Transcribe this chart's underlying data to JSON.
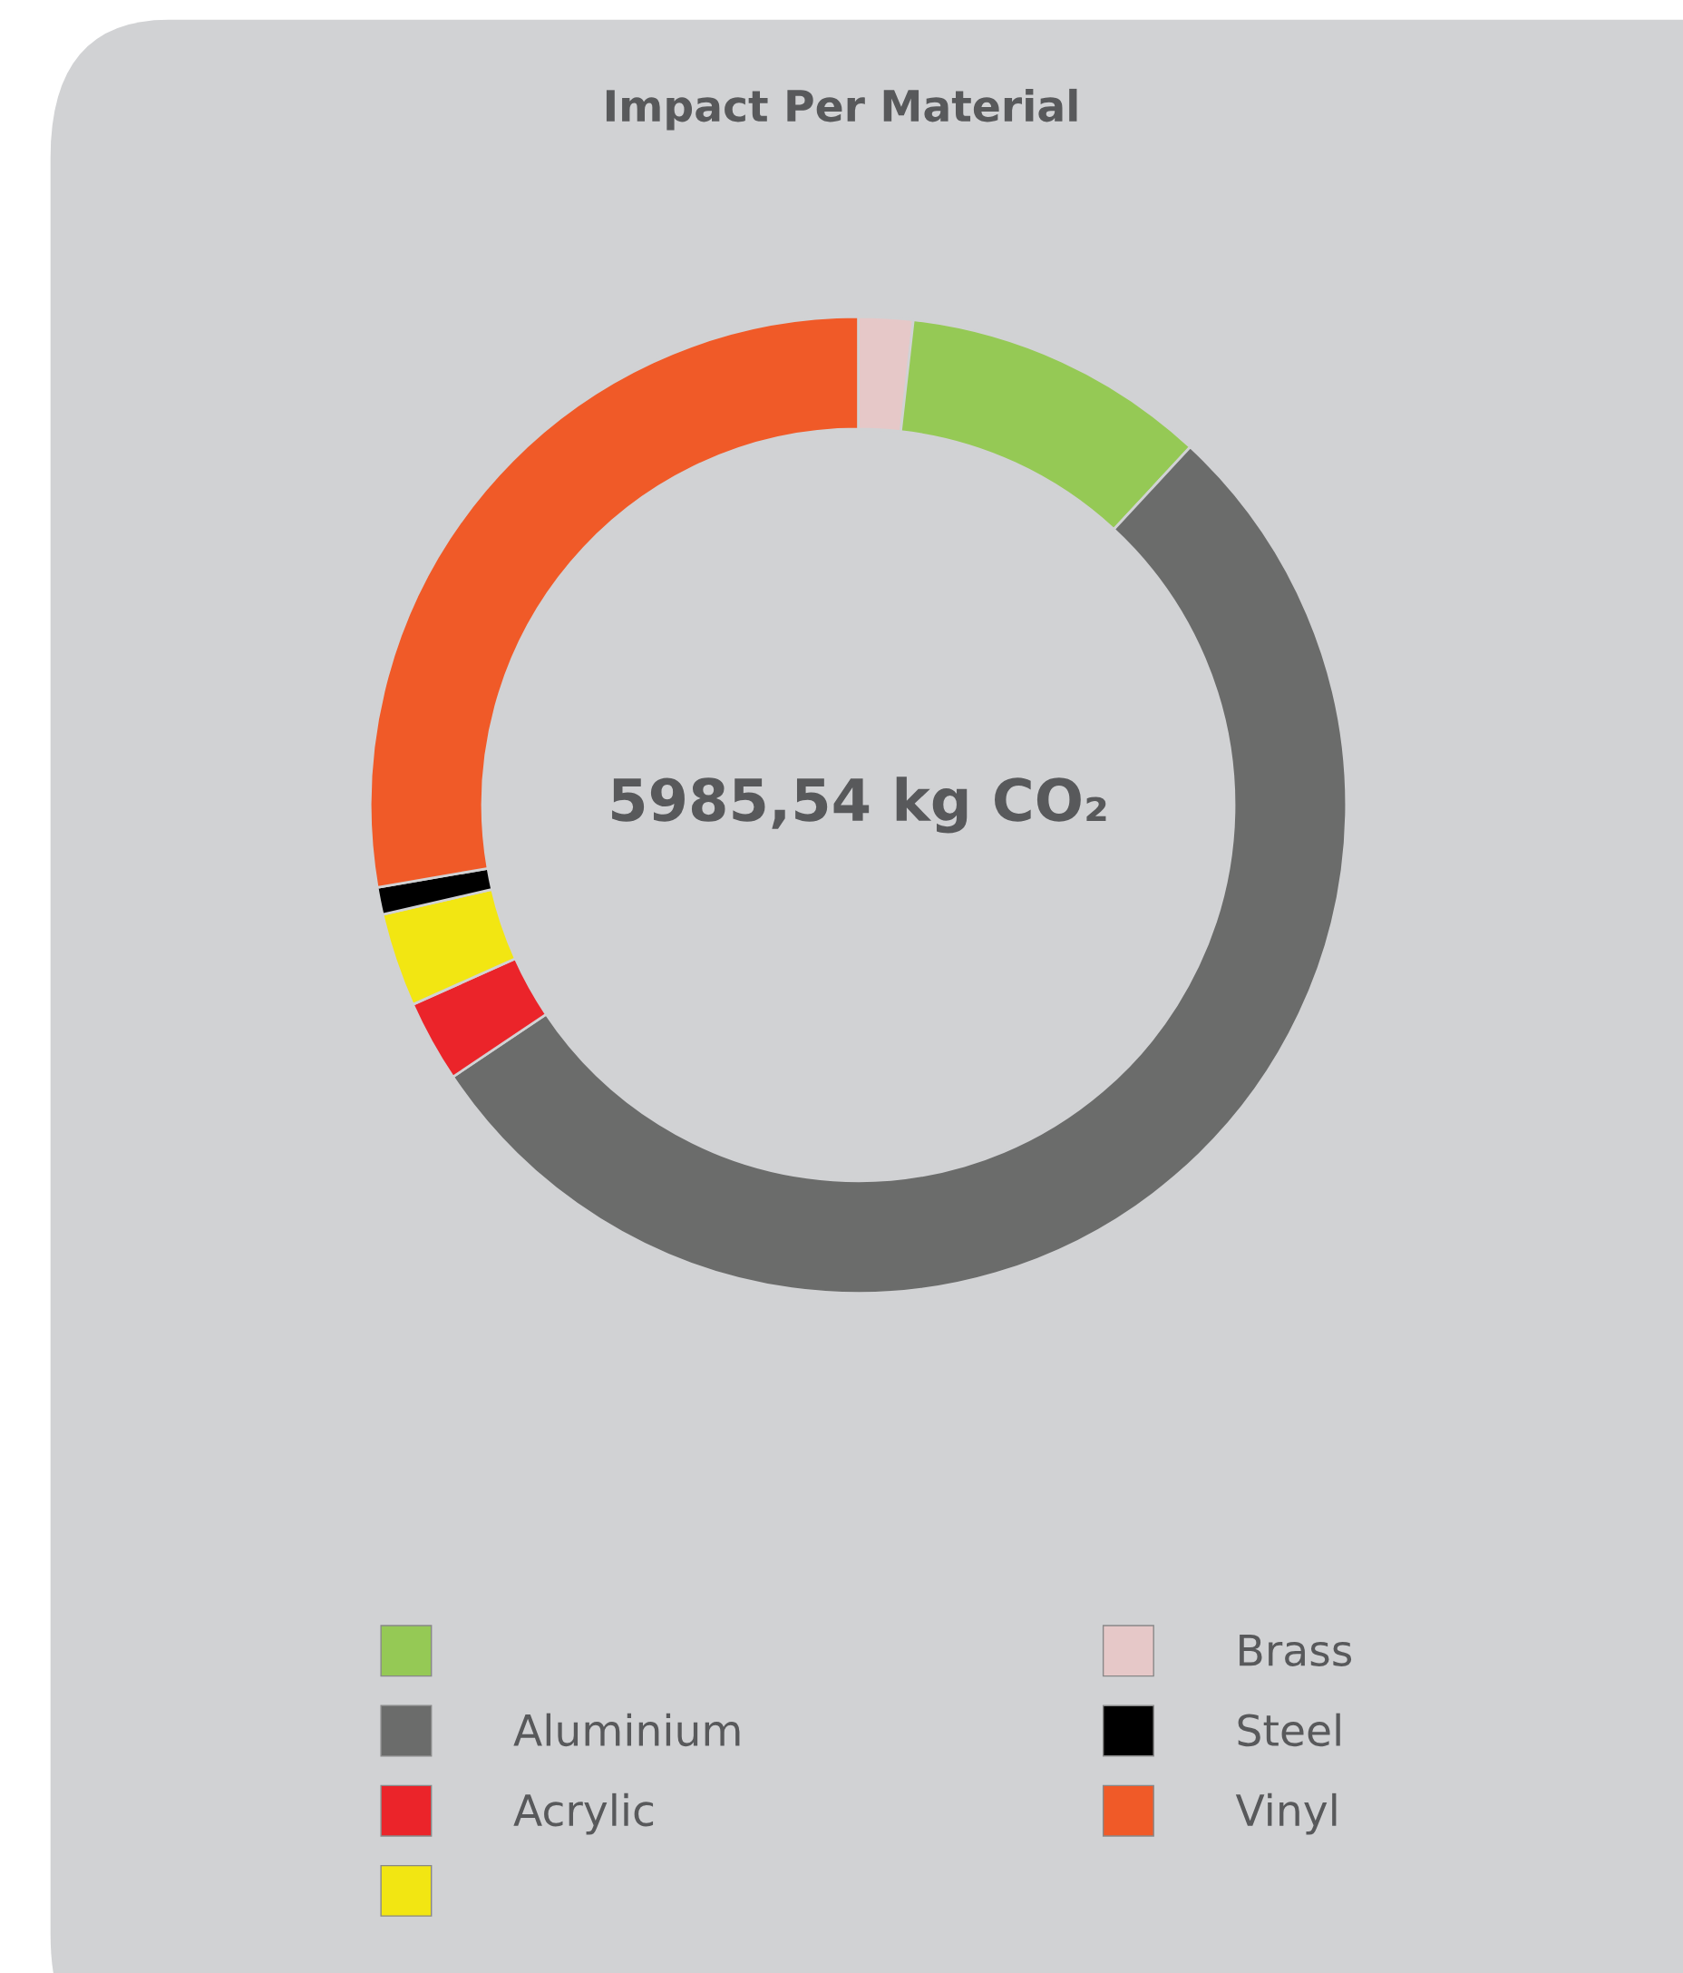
{
  "chart_data": {
    "type": "donut",
    "title": "Impact Per Material",
    "categories": [
      "Brass",
      null,
      "Aluminium",
      "Acrylic",
      null,
      "Steel",
      "Vinyl"
    ],
    "values": [
      1.8,
      10.1,
      53.7,
      2.7,
      3.1,
      0.9,
      27.7
    ],
    "colors": [
      "#e6c8c8",
      "#95c955",
      "#6b6c6b",
      "#eb242a",
      "#f2e612",
      "#000000",
      "#f05a28"
    ],
    "annotations": [
      "5985,54 kg CO₂"
    ],
    "legend": "bottom"
  }
}
